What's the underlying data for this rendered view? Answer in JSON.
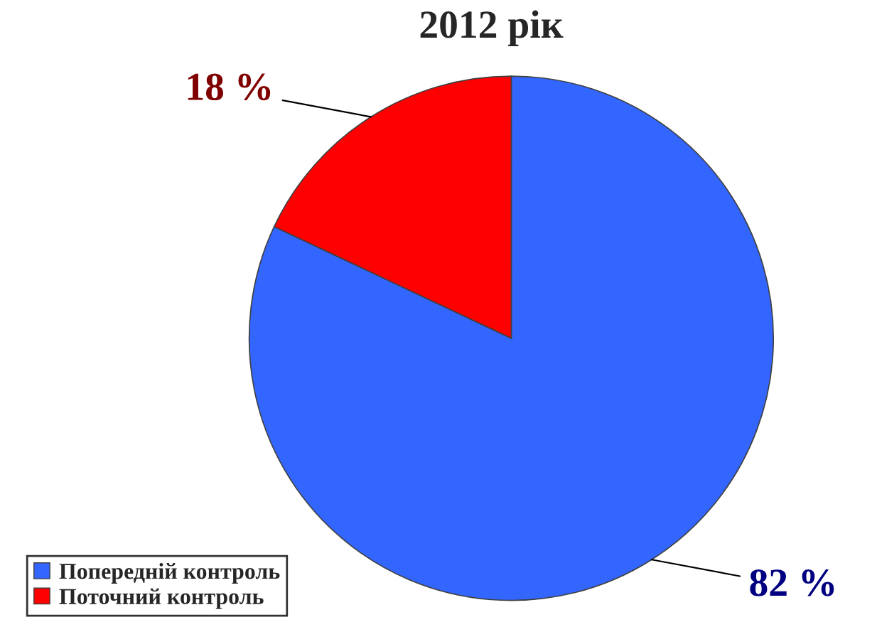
{
  "chart_data": {
    "type": "pie",
    "title": "2012 рік",
    "categories": [
      "Попередній контроль",
      "Поточний контроль"
    ],
    "values": [
      82,
      18
    ],
    "colors": [
      "#3366ff",
      "#ff0000"
    ],
    "value_labels": [
      "82 %",
      "18 %"
    ],
    "legend": "bottom left"
  }
}
